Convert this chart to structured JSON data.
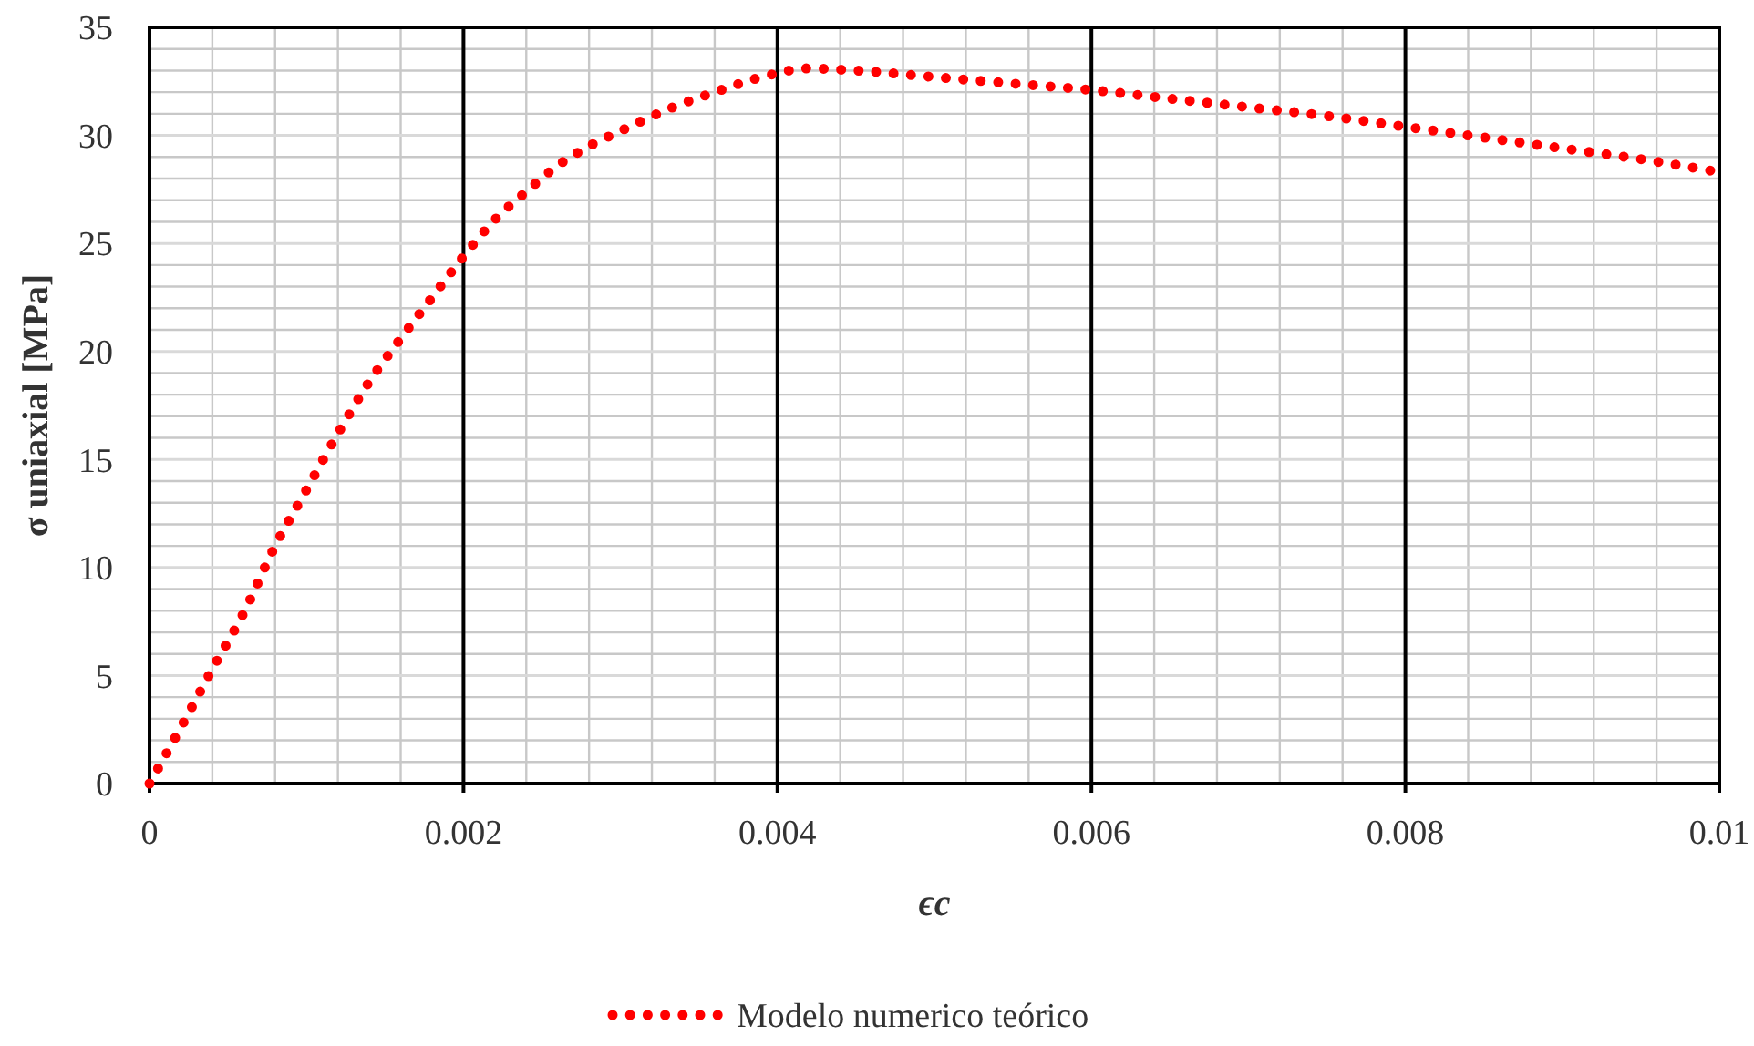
{
  "chart_data": {
    "type": "line",
    "xlabel": "ϵc",
    "ylabel": "σ uniaxial [MPa]",
    "xlim": [
      0,
      0.01
    ],
    "ylim": [
      0,
      35
    ],
    "xticks": [
      0,
      0.002,
      0.004,
      0.006,
      0.008,
      0.01
    ],
    "yticks": [
      0,
      5,
      10,
      15,
      20,
      25,
      30,
      35
    ],
    "grid": true,
    "legend": "bottom",
    "line_style": "dotted",
    "marker": "none",
    "series": [
      {
        "name": "Modelo numerico teórico",
        "color": "#ff0000",
        "x": [
          0,
          0.0002,
          0.0004,
          0.0006,
          0.0008,
          0.001,
          0.0012,
          0.0014,
          0.0016,
          0.0018,
          0.002,
          0.0022,
          0.0024,
          0.0026,
          0.0028,
          0.003,
          0.0033,
          0.0036,
          0.0039,
          0.0042,
          0.0045,
          0.005,
          0.0055,
          0.006,
          0.0065,
          0.007,
          0.0075,
          0.008,
          0.0085,
          0.009,
          0.0095,
          0.01
        ],
        "values": [
          0,
          2.6,
          5.3,
          7.9,
          11.0,
          13.6,
          16.2,
          18.6,
          20.6,
          22.5,
          24.4,
          26.1,
          27.4,
          28.6,
          29.5,
          30.2,
          31.2,
          32.0,
          32.7,
          33.1,
          33.0,
          32.7,
          32.4,
          32.1,
          31.7,
          31.3,
          30.9,
          30.4,
          29.9,
          29.4,
          28.9,
          28.3
        ]
      }
    ]
  }
}
